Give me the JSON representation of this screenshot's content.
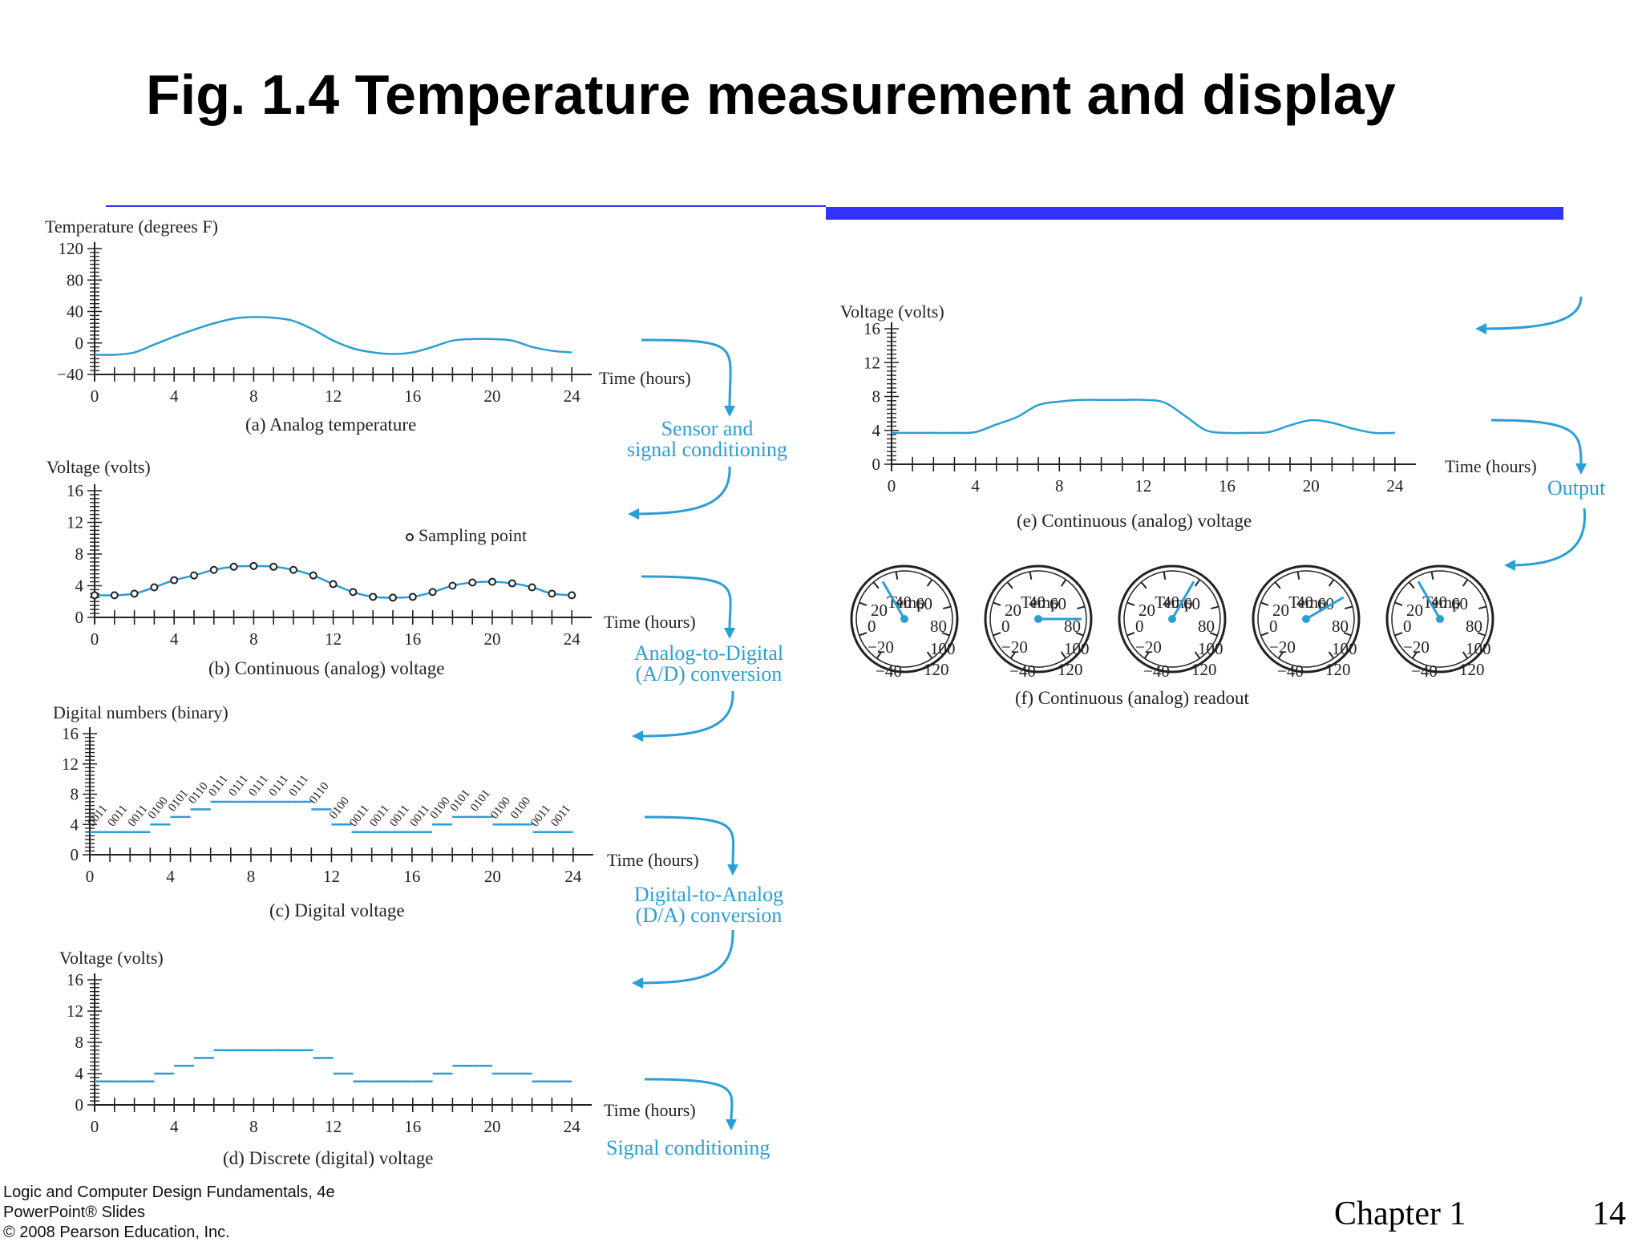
{
  "title": "Fig. 1.4 Temperature measurement and display",
  "footer": {
    "line1": "Logic and Computer Design Fundamentals, 4e",
    "line2": "PowerPoint® Slides",
    "line3": "© 2008 Pearson Education, Inc.",
    "chapter": "Chapter 1",
    "page": "14"
  },
  "colors": {
    "accent_bar": "#3333ff",
    "signal": "#2a9ed6",
    "axis": "#222222"
  },
  "time_ticks": [
    "0",
    "4",
    "8",
    "12",
    "16",
    "20",
    "24"
  ],
  "time_label": "Time (hours)",
  "panels": {
    "a": {
      "ylabel": "Temperature (degrees F)",
      "yticks": [
        "120",
        "80",
        "40",
        "0",
        "−40"
      ],
      "caption": "(a) Analog temperature"
    },
    "b": {
      "ylabel": "Voltage (volts)",
      "yticks": [
        "16",
        "12",
        "8",
        "4",
        "0"
      ],
      "caption": "(b) Continuous (analog) voltage",
      "legend": "Sampling point"
    },
    "c": {
      "ylabel": "Digital numbers (binary)",
      "yticks": [
        "16",
        "12",
        "8",
        "4",
        "0"
      ],
      "caption": "(c) Digital voltage",
      "codes": [
        "0011",
        "0011",
        "0011",
        "0100",
        "0101",
        "0110",
        "0111",
        "0111",
        "0111",
        "0111",
        "0111",
        "0110",
        "0100",
        "0011",
        "0011",
        "0011",
        "0011",
        "0100",
        "0101",
        "0101",
        "0100",
        "0100",
        "0011",
        "0011"
      ]
    },
    "d": {
      "ylabel": "Voltage (volts)",
      "yticks": [
        "16",
        "12",
        "8",
        "4",
        "0"
      ],
      "caption": "(d) Discrete (digital) voltage"
    },
    "e": {
      "ylabel": "Voltage (volts)",
      "yticks": [
        "16",
        "12",
        "8",
        "4",
        "0"
      ],
      "caption": "(e) Continuous (analog) voltage"
    },
    "f": {
      "caption": "(f) Continuous (analog) readout",
      "gauge": {
        "center": "Temp",
        "labels": [
          "0",
          "−20",
          "−40",
          "120",
          "100",
          "80",
          "60",
          "40",
          "20"
        ]
      }
    }
  },
  "arrow_labels": {
    "sensor": [
      "Sensor and",
      "signal conditioning"
    ],
    "ad": [
      "Analog-to-Digital",
      "(A/D) conversion"
    ],
    "da": [
      "Digital-to-Analog",
      "(D/A) conversion"
    ],
    "signal": "Signal conditioning",
    "output": "Output"
  },
  "chart_data": [
    {
      "type": "line",
      "title": "(a) Analog temperature",
      "xlabel": "Time (hours)",
      "ylabel": "Temperature (degrees F)",
      "xlim": [
        0,
        24
      ],
      "ylim": [
        -40,
        120
      ],
      "series": [
        {
          "x": [
            0,
            1,
            2,
            3,
            4,
            5,
            6,
            7,
            8,
            9,
            10,
            11,
            12,
            13,
            14,
            15,
            16,
            17,
            18,
            19,
            20,
            21,
            22,
            23,
            24
          ],
          "y": [
            -15,
            -15,
            -12,
            -2,
            8,
            17,
            25,
            31,
            33,
            32,
            28,
            17,
            3,
            -7,
            -12,
            -14,
            -12,
            -5,
            3,
            5,
            5,
            3,
            -5,
            -10,
            -12
          ]
        }
      ]
    },
    {
      "type": "scatter",
      "title": "(b) Continuous (analog) voltage",
      "xlabel": "Time (hours)",
      "ylabel": "Voltage (volts)",
      "xlim": [
        0,
        24
      ],
      "ylim": [
        0,
        16
      ],
      "series": [
        {
          "name": "Sampling point",
          "x": [
            0,
            1,
            2,
            3,
            4,
            5,
            6,
            7,
            8,
            9,
            10,
            11,
            12,
            13,
            14,
            15,
            16,
            17,
            18,
            19,
            20,
            21,
            22,
            23,
            24
          ],
          "y": [
            2.8,
            2.8,
            3.0,
            3.8,
            4.7,
            5.3,
            6.0,
            6.4,
            6.5,
            6.4,
            6.0,
            5.3,
            4.2,
            3.2,
            2.6,
            2.5,
            2.6,
            3.2,
            4.0,
            4.4,
            4.5,
            4.3,
            3.8,
            3.0,
            2.8
          ]
        }
      ]
    },
    {
      "type": "line",
      "title": "(c) Digital voltage",
      "xlabel": "Time (hours)",
      "ylabel": "Digital numbers (binary)",
      "xlim": [
        0,
        24
      ],
      "ylim": [
        0,
        16
      ],
      "series": [
        {
          "x": [
            0,
            1,
            2,
            3,
            4,
            5,
            6,
            7,
            8,
            9,
            10,
            11,
            12,
            13,
            14,
            15,
            16,
            17,
            18,
            19,
            20,
            21,
            22,
            23
          ],
          "y": [
            3,
            3,
            3,
            4,
            5,
            6,
            7,
            7,
            7,
            7,
            7,
            6,
            4,
            3,
            3,
            3,
            3,
            4,
            5,
            5,
            4,
            4,
            3,
            3
          ]
        }
      ]
    },
    {
      "type": "line",
      "title": "(d) Discrete (digital) voltage",
      "xlabel": "Time (hours)",
      "ylabel": "Voltage (volts)",
      "xlim": [
        0,
        24
      ],
      "ylim": [
        0,
        16
      ],
      "series": [
        {
          "x": [
            0,
            1,
            2,
            3,
            4,
            5,
            6,
            7,
            8,
            9,
            10,
            11,
            12,
            13,
            14,
            15,
            16,
            17,
            18,
            19,
            20,
            21,
            22,
            23
          ],
          "y": [
            3,
            3,
            3,
            4,
            5,
            6,
            7,
            7,
            7,
            7,
            7,
            6,
            4,
            3,
            3,
            3,
            3,
            4,
            5,
            5,
            4,
            4,
            3,
            3
          ]
        }
      ]
    },
    {
      "type": "line",
      "title": "(e) Continuous (analog) voltage",
      "xlabel": "Time (hours)",
      "ylabel": "Voltage (volts)",
      "xlim": [
        0,
        24
      ],
      "ylim": [
        0,
        16
      ],
      "series": [
        {
          "x": [
            0,
            1,
            2,
            3,
            4,
            5,
            6,
            7,
            8,
            9,
            10,
            11,
            12,
            13,
            14,
            15,
            16,
            17,
            18,
            19,
            20,
            21,
            22,
            23,
            24
          ],
          "y": [
            3.7,
            3.7,
            3.7,
            3.7,
            3.8,
            4.7,
            5.6,
            7.0,
            7.4,
            7.6,
            7.6,
            7.6,
            7.6,
            7.3,
            5.7,
            4.0,
            3.7,
            3.7,
            3.8,
            4.6,
            5.2,
            4.9,
            4.2,
            3.7,
            3.7
          ]
        }
      ]
    }
  ],
  "gauge_readings_deg_f": [
    0,
    80,
    40,
    60,
    0
  ]
}
